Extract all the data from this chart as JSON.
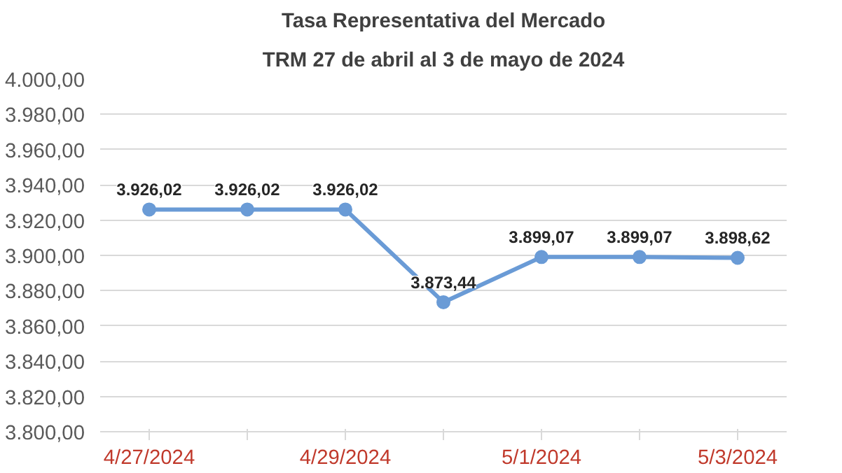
{
  "chart_data": {
    "type": "line",
    "title": "Tasa Representativa del Mercado",
    "subtitle": "TRM 27 de abril al 3 de mayo de 2024",
    "categories": [
      "4/27/2024",
      null,
      "4/29/2024",
      null,
      "5/1/2024",
      null,
      "5/3/2024"
    ],
    "series": [
      {
        "color": "#6a9bd6",
        "values": [
          3926.02,
          3926.02,
          3926.02,
          3873.44,
          3899.07,
          3899.07,
          3898.62
        ],
        "value_labels": [
          "3.926,02",
          "3.926,02",
          "3.926,02",
          "3.873,44",
          "3.899,07",
          "3.899,07",
          "3.898,62"
        ]
      }
    ],
    "ylim": [
      3800,
      4000
    ],
    "yticks": [
      {
        "value": 3800,
        "label": "3.800,00"
      },
      {
        "value": 3820,
        "label": "3.820,00"
      },
      {
        "value": 3840,
        "label": "3.840,00"
      },
      {
        "value": 3860,
        "label": "3.860,00"
      },
      {
        "value": 3880,
        "label": "3.880,00"
      },
      {
        "value": 3900,
        "label": "3.900,00"
      },
      {
        "value": 3920,
        "label": "3.920,00"
      },
      {
        "value": 3940,
        "label": "3.940,00"
      },
      {
        "value": 3960,
        "label": "3.960,00"
      },
      {
        "value": 3980,
        "label": "3.980,00"
      },
      {
        "value": 4000,
        "label": "4.000,00"
      }
    ],
    "grid": "y",
    "marker": "circle",
    "line_style": "solid"
  }
}
